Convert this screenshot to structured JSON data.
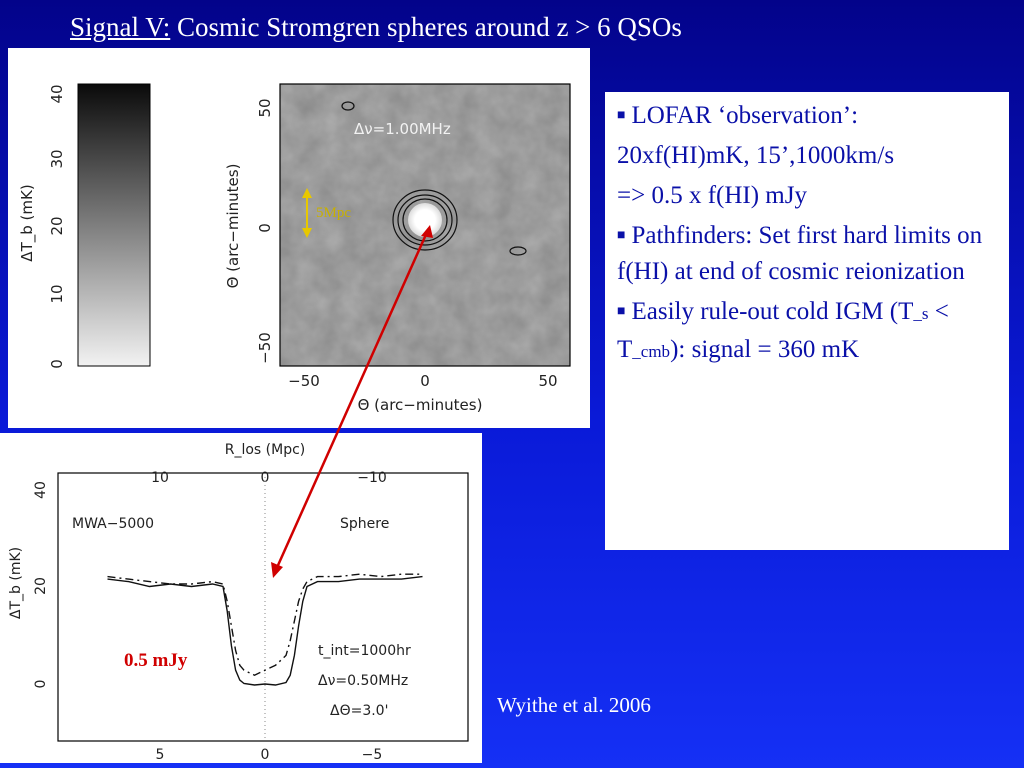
{
  "title": {
    "underlined": "Signal V:",
    "rest": " Cosmic Stromgren spheres around z > 6 QSOs"
  },
  "map": {
    "colorbar_ticks": [
      "40",
      "30",
      "20",
      "10",
      "0"
    ],
    "colorbar_label": "ΔT_b (mK)",
    "y_ticks": [
      "50",
      "0",
      "−50"
    ],
    "y_label": "Θ (arc−minutes)",
    "x_ticks": [
      "−50",
      "0",
      "50"
    ],
    "x_label": "Θ (arc−minutes)",
    "annotation": "Δν=1.00MHz",
    "scale_label": "5Mpc"
  },
  "chart_data": {
    "type": "line",
    "top_axis_label": "R_los (Mpc)",
    "top_ticks": [
      "10",
      "0",
      "−10"
    ],
    "bottom_ticks": [
      "5",
      "0",
      "−5"
    ],
    "ylabel": "ΔT_b (mK)",
    "y_ticks": [
      "40",
      "20",
      "0"
    ],
    "ylim": [
      0,
      40
    ],
    "left_label": "MWA−5000",
    "right_label": "Sphere",
    "params": [
      "t_int=1000hr",
      "Δν=0.50MHz",
      "ΔΘ=3.0'"
    ],
    "series": [
      {
        "x": [
          7.5,
          6.5,
          5.5,
          4.5,
          3.5,
          2.5,
          2.0,
          1.8,
          1.6,
          1.4,
          1.2,
          1.0,
          0.5,
          0.0,
          -0.5,
          -1.0,
          -1.2,
          -1.4,
          -1.6,
          -1.8,
          -2.0,
          -2.5,
          -3.5,
          -4.5,
          -5.5,
          -6.5,
          -7.5
        ],
        "y": [
          21.5,
          21,
          20,
          20.5,
          20,
          20.5,
          20,
          15,
          8,
          3,
          1,
          0.3,
          0,
          0.2,
          0,
          0.5,
          2,
          6,
          12,
          17,
          20,
          21,
          21,
          21.5,
          21.5,
          21.5,
          22
        ]
      },
      {
        "x": [
          7.5,
          6.5,
          5.5,
          4.5,
          3.5,
          2.5,
          2.0,
          1.8,
          1.6,
          1.4,
          1.2,
          1.0,
          0.5,
          0.0,
          -0.5,
          -1.0,
          -1.2,
          -1.4,
          -1.6,
          -1.8,
          -2.0,
          -2.5,
          -3.5,
          -4.5,
          -5.5,
          -6.5,
          -7.5
        ],
        "y": [
          22,
          21.5,
          21,
          20.5,
          20.5,
          21,
          20.5,
          17,
          12,
          7,
          4,
          3,
          2,
          3,
          4,
          6,
          9,
          13,
          17,
          19.5,
          21,
          22,
          22,
          22.5,
          22,
          22.5,
          22.5
        ]
      }
    ]
  },
  "mjy_label": "0.5 mJy",
  "textbox": {
    "b1": "LOFAR ‘observation’:",
    "l2": "20xf(HI)mK, 15’,1000km/s",
    "l3": "=> 0.5 x f(HI) mJy",
    "b2": "Pathfinders: Set first hard limits on f(HI) at end of cosmic reionization",
    "b3_pre": "Easily rule-out cold IGM (T",
    "b3_sub1": "_s",
    "b3_mid": " < T",
    "b3_sub2": "_cmb",
    "b3_post": "): signal = 360 mK"
  },
  "citation": "Wyithe et al. 2006"
}
